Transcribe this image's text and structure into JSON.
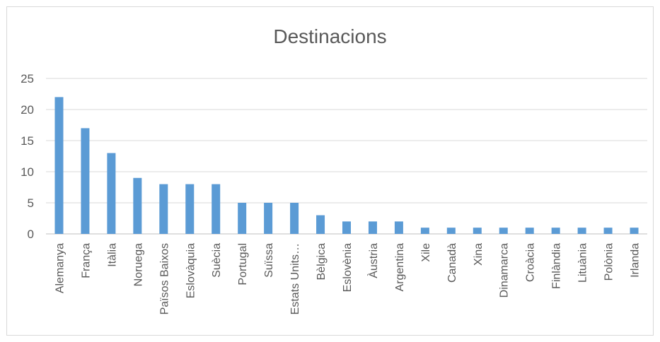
{
  "chart_data": {
    "type": "bar",
    "title": "Destinacions",
    "xlabel": "",
    "ylabel": "",
    "ylim": [
      0,
      25
    ],
    "yticks": [
      0,
      5,
      10,
      15,
      20,
      25
    ],
    "grid": true,
    "legend": "none",
    "bar_color": "#5b9bd5",
    "categories": [
      "Alemanya",
      "França",
      "Itàlia",
      "Noruega",
      "Països Baixos",
      "Eslovàquia",
      "Suècia",
      "Portugal",
      "Suïssa",
      "Estats Units…",
      "Bèlgica",
      "Eslovènia",
      "Àustria",
      "Argentina",
      "Xile",
      "Canadà",
      "Xina",
      "Dinamarca",
      "Croàcia",
      "Finlàndia",
      "Lituània",
      "Polònia",
      "Irlanda"
    ],
    "values": [
      22,
      17,
      13,
      9,
      8,
      8,
      8,
      5,
      5,
      5,
      3,
      2,
      2,
      2,
      1,
      1,
      1,
      1,
      1,
      1,
      1,
      1,
      1
    ]
  }
}
